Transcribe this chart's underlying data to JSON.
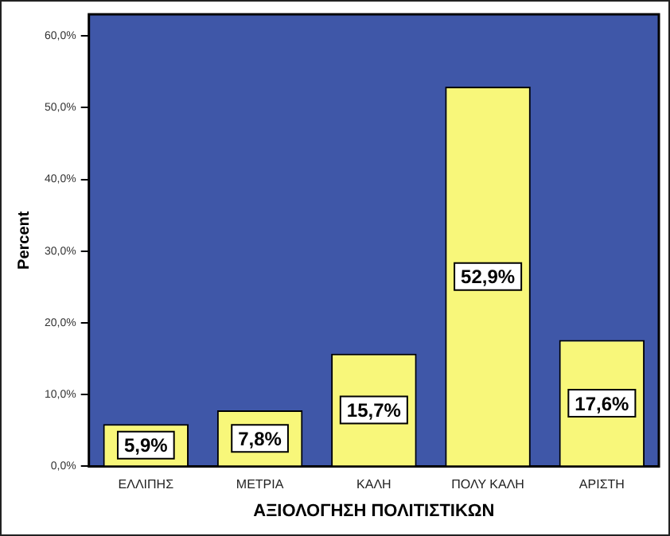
{
  "chart_data": {
    "type": "bar",
    "xlabel": "ΑΞΙΟΛΟΓΗΣΗ ΠΟΛΙΤΙΣΤΙΚΩΝ",
    "ylabel": "Percent",
    "categories": [
      "ΕΛΛΙΠΗΣ",
      "ΜΕΤΡΙΑ",
      "ΚΑΛΗ",
      "ΠΟΛΥ ΚΑΛΗ",
      "ΑΡΙΣΤΗ"
    ],
    "values": [
      5.9,
      7.8,
      15.7,
      52.9,
      17.6
    ],
    "value_labels": [
      "5,9%",
      "7,8%",
      "15,7%",
      "52,9%",
      "17,6%"
    ],
    "color": "#f8f77a",
    "ylim": [
      0,
      63
    ],
    "yticks": [
      {
        "value": 0,
        "label": "0,0%"
      },
      {
        "value": 10,
        "label": "10,0%"
      },
      {
        "value": 20,
        "label": "20,0%"
      },
      {
        "value": 30,
        "label": "30,0%"
      },
      {
        "value": 40,
        "label": "40,0%"
      },
      {
        "value": 50,
        "label": "50,0%"
      },
      {
        "value": 60,
        "label": "60,0%"
      }
    ],
    "grid": false,
    "legend": false
  }
}
